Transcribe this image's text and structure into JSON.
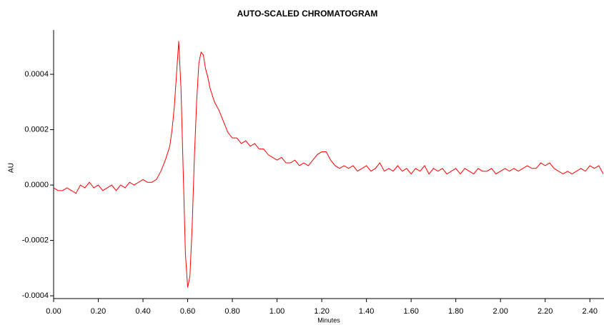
{
  "chart_data": {
    "type": "line",
    "title": "AUTO-SCALED CHROMATOGRAM",
    "x_label": "Minutes",
    "y_label": "AU",
    "color": "#ff0000",
    "x": [
      0.0,
      0.02,
      0.04,
      0.06,
      0.08,
      0.1,
      0.12,
      0.14,
      0.16,
      0.18,
      0.2,
      0.22,
      0.24,
      0.26,
      0.28,
      0.3,
      0.32,
      0.34,
      0.36,
      0.38,
      0.4,
      0.42,
      0.44,
      0.46,
      0.48,
      0.5,
      0.52,
      0.53,
      0.54,
      0.55,
      0.56,
      0.57,
      0.58,
      0.59,
      0.6,
      0.61,
      0.62,
      0.63,
      0.64,
      0.65,
      0.66,
      0.67,
      0.68,
      0.69,
      0.7,
      0.72,
      0.74,
      0.76,
      0.78,
      0.8,
      0.82,
      0.84,
      0.86,
      0.88,
      0.9,
      0.92,
      0.94,
      0.96,
      0.98,
      1.0,
      1.02,
      1.04,
      1.06,
      1.08,
      1.1,
      1.12,
      1.14,
      1.16,
      1.18,
      1.2,
      1.22,
      1.24,
      1.26,
      1.28,
      1.3,
      1.32,
      1.34,
      1.36,
      1.38,
      1.4,
      1.42,
      1.44,
      1.46,
      1.48,
      1.5,
      1.52,
      1.54,
      1.56,
      1.58,
      1.6,
      1.62,
      1.64,
      1.66,
      1.68,
      1.7,
      1.72,
      1.74,
      1.76,
      1.78,
      1.8,
      1.82,
      1.84,
      1.86,
      1.88,
      1.9,
      1.92,
      1.94,
      1.96,
      1.98,
      2.0,
      2.02,
      2.04,
      2.06,
      2.08,
      2.1,
      2.12,
      2.14,
      2.16,
      2.18,
      2.2,
      2.22,
      2.24,
      2.26,
      2.28,
      2.3,
      2.32,
      2.34,
      2.36,
      2.38,
      2.4,
      2.42,
      2.44,
      2.46
    ],
    "values": [
      -1e-05,
      -2e-05,
      -2e-05,
      -1e-05,
      -2e-05,
      -3e-05,
      0.0,
      -1e-05,
      1e-05,
      -1e-05,
      0.0,
      -2e-05,
      -1e-05,
      0.0,
      -2e-05,
      0.0,
      -1e-05,
      1e-05,
      0.0,
      1e-05,
      2e-05,
      1e-05,
      1e-05,
      2e-05,
      5e-05,
      9e-05,
      0.00014,
      0.0002,
      0.00028,
      0.0004,
      0.00052,
      0.00035,
      5e-05,
      -0.00025,
      -0.00037,
      -0.00033,
      -0.00015,
      0.0001,
      0.0003,
      0.00044,
      0.00048,
      0.00047,
      0.00042,
      0.00039,
      0.00035,
      0.0003,
      0.00027,
      0.00023,
      0.00019,
      0.00017,
      0.00017,
      0.00015,
      0.00016,
      0.00014,
      0.00015,
      0.00013,
      0.00013,
      0.00011,
      0.0001,
      9e-05,
      0.0001,
      8e-05,
      8e-05,
      9e-05,
      7e-05,
      8e-05,
      7e-05,
      9e-05,
      0.00011,
      0.00012,
      0.00012,
      9e-05,
      7e-05,
      6e-05,
      7e-05,
      6e-05,
      7e-05,
      5e-05,
      6e-05,
      7e-05,
      5e-05,
      6e-05,
      8e-05,
      5e-05,
      6e-05,
      5e-05,
      7e-05,
      5e-05,
      6e-05,
      4e-05,
      6e-05,
      5e-05,
      7e-05,
      4e-05,
      6e-05,
      5e-05,
      6e-05,
      4e-05,
      5e-05,
      6e-05,
      4e-05,
      6e-05,
      5e-05,
      4e-05,
      6e-05,
      5e-05,
      5e-05,
      6e-05,
      4e-05,
      5e-05,
      6e-05,
      5e-05,
      6e-05,
      5e-05,
      6e-05,
      7e-05,
      6e-05,
      6e-05,
      8e-05,
      7e-05,
      8e-05,
      6e-05,
      5e-05,
      4e-05,
      5e-05,
      4e-05,
      5e-05,
      6e-05,
      5e-05,
      7e-05,
      6e-05,
      7e-05,
      4e-05
    ],
    "xlim": [
      0,
      2.46
    ],
    "ylim": [
      -0.00041,
      0.00056
    ],
    "xticks": [
      {
        "value": 0,
        "label": "0.00"
      },
      {
        "value": 0.2,
        "label": "0.20"
      },
      {
        "value": 0.4,
        "label": "0.40"
      },
      {
        "value": 0.6,
        "label": "0.60"
      },
      {
        "value": 0.8,
        "label": "0.80"
      },
      {
        "value": 1.0,
        "label": "1.00"
      },
      {
        "value": 1.2,
        "label": "1.20"
      },
      {
        "value": 1.4,
        "label": "1.40"
      },
      {
        "value": 1.6,
        "label": "1.60"
      },
      {
        "value": 1.8,
        "label": "1.80"
      },
      {
        "value": 2.0,
        "label": "2.00"
      },
      {
        "value": 2.2,
        "label": "2.20"
      },
      {
        "value": 2.4,
        "label": "2.40"
      }
    ],
    "yticks": [
      {
        "value": -0.0004,
        "label": "-0.0004"
      },
      {
        "value": -0.0002,
        "label": "-0.0002"
      },
      {
        "value": 0,
        "label": "0.0000"
      },
      {
        "value": 0.0002,
        "label": "0.0002"
      },
      {
        "value": 0.0004,
        "label": "0.0004"
      }
    ]
  }
}
